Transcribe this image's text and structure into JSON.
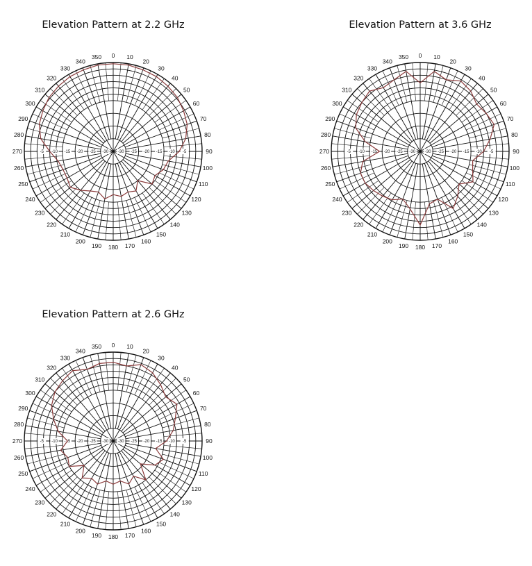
{
  "chart_data": [
    {
      "type": "polar-line",
      "title": "Elevation Pattern at 2.2 GHz",
      "angle_labels": [
        "0",
        "10",
        "20",
        "30",
        "40",
        "50",
        "60",
        "70",
        "80",
        "90",
        "100",
        "110",
        "120",
        "130",
        "140",
        "150",
        "160",
        "170",
        "180",
        "190",
        "200",
        "210",
        "220",
        "230",
        "240",
        "250",
        "260",
        "270",
        "280",
        "290",
        "300",
        "310",
        "320",
        "330",
        "340",
        "350"
      ],
      "radial_labels": [
        "-5",
        "-10",
        "-15",
        "-20",
        "-25",
        "-30"
      ],
      "rlim": [
        -35,
        0
      ],
      "line_color": "#8b3a3a",
      "series": [
        {
          "angles": [
            0,
            10,
            20,
            30,
            40,
            50,
            60,
            70,
            80,
            90,
            100,
            110,
            120,
            130,
            140,
            150,
            160,
            170,
            180,
            190,
            200,
            210,
            220,
            230,
            240,
            250,
            260,
            270,
            280,
            290,
            300,
            310,
            320,
            330,
            340,
            350,
            360
          ],
          "values": [
            -0.5,
            -0.5,
            -0.8,
            -1,
            -1.5,
            -2,
            -3,
            -4,
            -6,
            -9,
            -13,
            -14,
            -16,
            -15,
            -20,
            -17,
            -18,
            -17,
            -18,
            -16,
            -18,
            -17,
            -15,
            -13,
            -14,
            -14,
            -13,
            -10,
            -6,
            -4,
            -3,
            -2,
            -1.5,
            -1,
            -0.8,
            -0.5,
            -0.5
          ]
        }
      ]
    },
    {
      "type": "polar-line",
      "title": "Elevation Pattern at 3.6 GHz",
      "angle_labels": [
        "0",
        "10",
        "20",
        "30",
        "40",
        "50",
        "60",
        "70",
        "80",
        "90",
        "100",
        "110",
        "120",
        "130",
        "140",
        "150",
        "160",
        "170",
        "180",
        "190",
        "200",
        "210",
        "220",
        "230",
        "240",
        "250",
        "260",
        "270",
        "280",
        "290",
        "300",
        "310",
        "320",
        "330",
        "340",
        "350"
      ],
      "radial_labels": [
        "-5",
        "-10",
        "-15",
        "-20",
        "-25",
        "-30"
      ],
      "rlim": [
        -35,
        0
      ],
      "line_color": "#8b3a3a",
      "series": [
        {
          "angles": [
            0,
            10,
            20,
            30,
            40,
            50,
            60,
            70,
            80,
            90,
            100,
            110,
            120,
            130,
            140,
            150,
            160,
            170,
            180,
            190,
            200,
            210,
            220,
            230,
            240,
            250,
            260,
            270,
            280,
            290,
            300,
            310,
            320,
            330,
            340,
            350,
            360
          ],
          "values": [
            -8,
            -3,
            -5,
            -3,
            -4,
            -6,
            -5,
            -4,
            -7,
            -10,
            -14,
            -13,
            -11,
            -15,
            -12,
            -9,
            -15,
            -14,
            -6,
            -12,
            -15,
            -13,
            -12,
            -11,
            -10,
            -10,
            -12,
            -19,
            -13,
            -8,
            -6,
            -5,
            -4,
            -6,
            -5,
            -3,
            -8
          ]
        }
      ]
    },
    {
      "type": "polar-line",
      "title": "Elevation Pattern at 2.6 GHz",
      "angle_labels": [
        "0",
        "10",
        "20",
        "30",
        "40",
        "50",
        "60",
        "70",
        "80",
        "90",
        "100",
        "110",
        "120",
        "130",
        "140",
        "150",
        "160",
        "170",
        "180",
        "190",
        "200",
        "210",
        "220",
        "230",
        "240",
        "250",
        "260",
        "270",
        "280",
        "290",
        "300",
        "310",
        "320",
        "330",
        "340",
        "350"
      ],
      "radial_labels": [
        "-5",
        "-10",
        "-15",
        "-20",
        "-25",
        "-30"
      ],
      "rlim": [
        -35,
        0
      ],
      "line_color": "#8b3a3a",
      "series": [
        {
          "angles": [
            0,
            10,
            20,
            30,
            40,
            50,
            60,
            70,
            80,
            90,
            100,
            110,
            120,
            130,
            140,
            150,
            160,
            170,
            180,
            190,
            200,
            210,
            220,
            230,
            240,
            250,
            260,
            270,
            280,
            290,
            300,
            310,
            320,
            330,
            340,
            350,
            360
          ],
          "values": [
            -4,
            -5,
            -3,
            -4,
            -6,
            -8,
            -6,
            -9,
            -11,
            -14,
            -18,
            -14,
            -16,
            -21,
            -15,
            -19,
            -17,
            -19,
            -18,
            -19,
            -17,
            -18,
            -16,
            -20,
            -15,
            -16,
            -14,
            -17,
            -13,
            -10,
            -7,
            -5,
            -4,
            -3,
            -5,
            -4,
            -4
          ]
        }
      ]
    }
  ]
}
